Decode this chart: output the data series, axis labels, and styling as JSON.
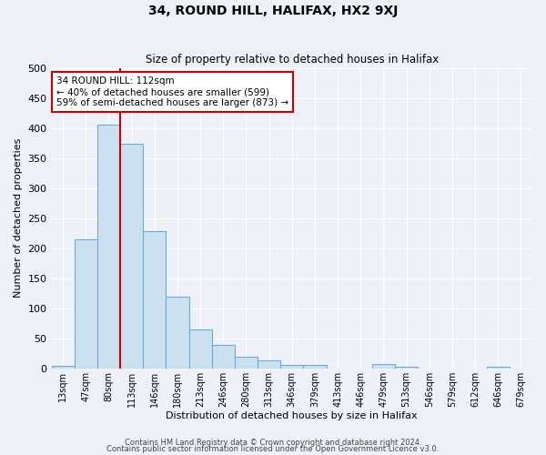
{
  "title": "34, ROUND HILL, HALIFAX, HX2 9XJ",
  "subtitle": "Size of property relative to detached houses in Halifax",
  "xlabel": "Distribution of detached houses by size in Halifax",
  "ylabel": "Number of detached properties",
  "bar_color": "#cce0f0",
  "bar_edge_color": "#6aaed6",
  "background_color": "#eef2f8",
  "grid_color": "#ffffff",
  "categories": [
    "13sqm",
    "47sqm",
    "80sqm",
    "113sqm",
    "146sqm",
    "180sqm",
    "213sqm",
    "246sqm",
    "280sqm",
    "313sqm",
    "346sqm",
    "379sqm",
    "413sqm",
    "446sqm",
    "479sqm",
    "513sqm",
    "546sqm",
    "579sqm",
    "612sqm",
    "646sqm",
    "679sqm"
  ],
  "values": [
    4,
    214,
    406,
    373,
    228,
    120,
    65,
    39,
    20,
    13,
    5,
    6,
    0,
    0,
    8,
    3,
    0,
    0,
    0,
    3,
    0
  ],
  "ylim": [
    0,
    500
  ],
  "yticks": [
    0,
    50,
    100,
    150,
    200,
    250,
    300,
    350,
    400,
    450,
    500
  ],
  "vline_x_index": 3,
  "vline_color": "#cc0000",
  "annot_line1": "34 ROUND HILL: 112sqm",
  "annot_line2": "← 40% of detached houses are smaller (599)",
  "annot_line3": "59% of semi-detached houses are larger (873) →",
  "annotation_box_color": "#ffffff",
  "annotation_box_edge": "#cc0000",
  "footer1": "Contains HM Land Registry data © Crown copyright and database right 2024.",
  "footer2": "Contains public sector information licensed under the Open Government Licence v3.0."
}
